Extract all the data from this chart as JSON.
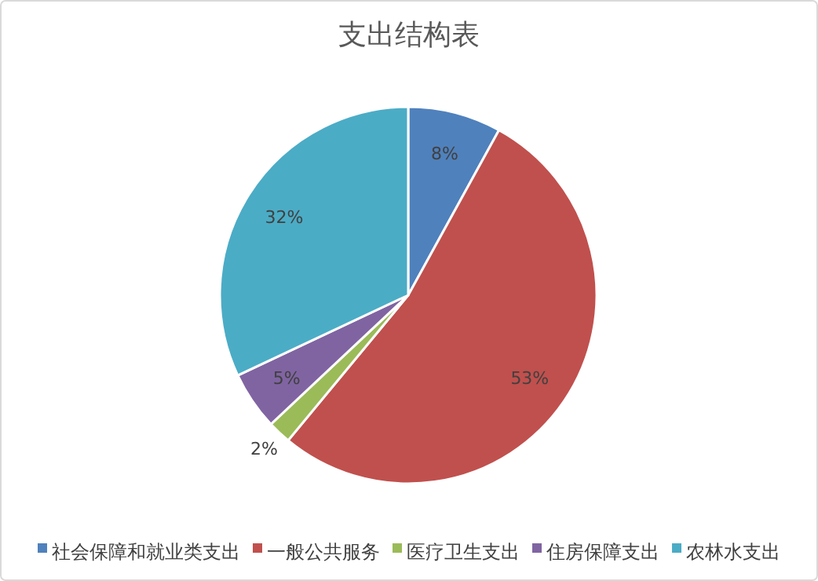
{
  "chart_data": {
    "type": "pie",
    "title": "支出结构表",
    "categories": [
      "社会保障和就业类支出",
      "一般公共服务",
      "医疗卫生支出",
      "住房保障支出",
      "农林水支出"
    ],
    "values": [
      8,
      53,
      2,
      5,
      32
    ],
    "colors": [
      "#4f81bd",
      "#c0504d",
      "#9bbb59",
      "#8064a2",
      "#4bacc6"
    ],
    "value_labels": [
      "8%",
      "53%",
      "2%",
      "5%",
      "32%"
    ],
    "legend": "bottom"
  }
}
